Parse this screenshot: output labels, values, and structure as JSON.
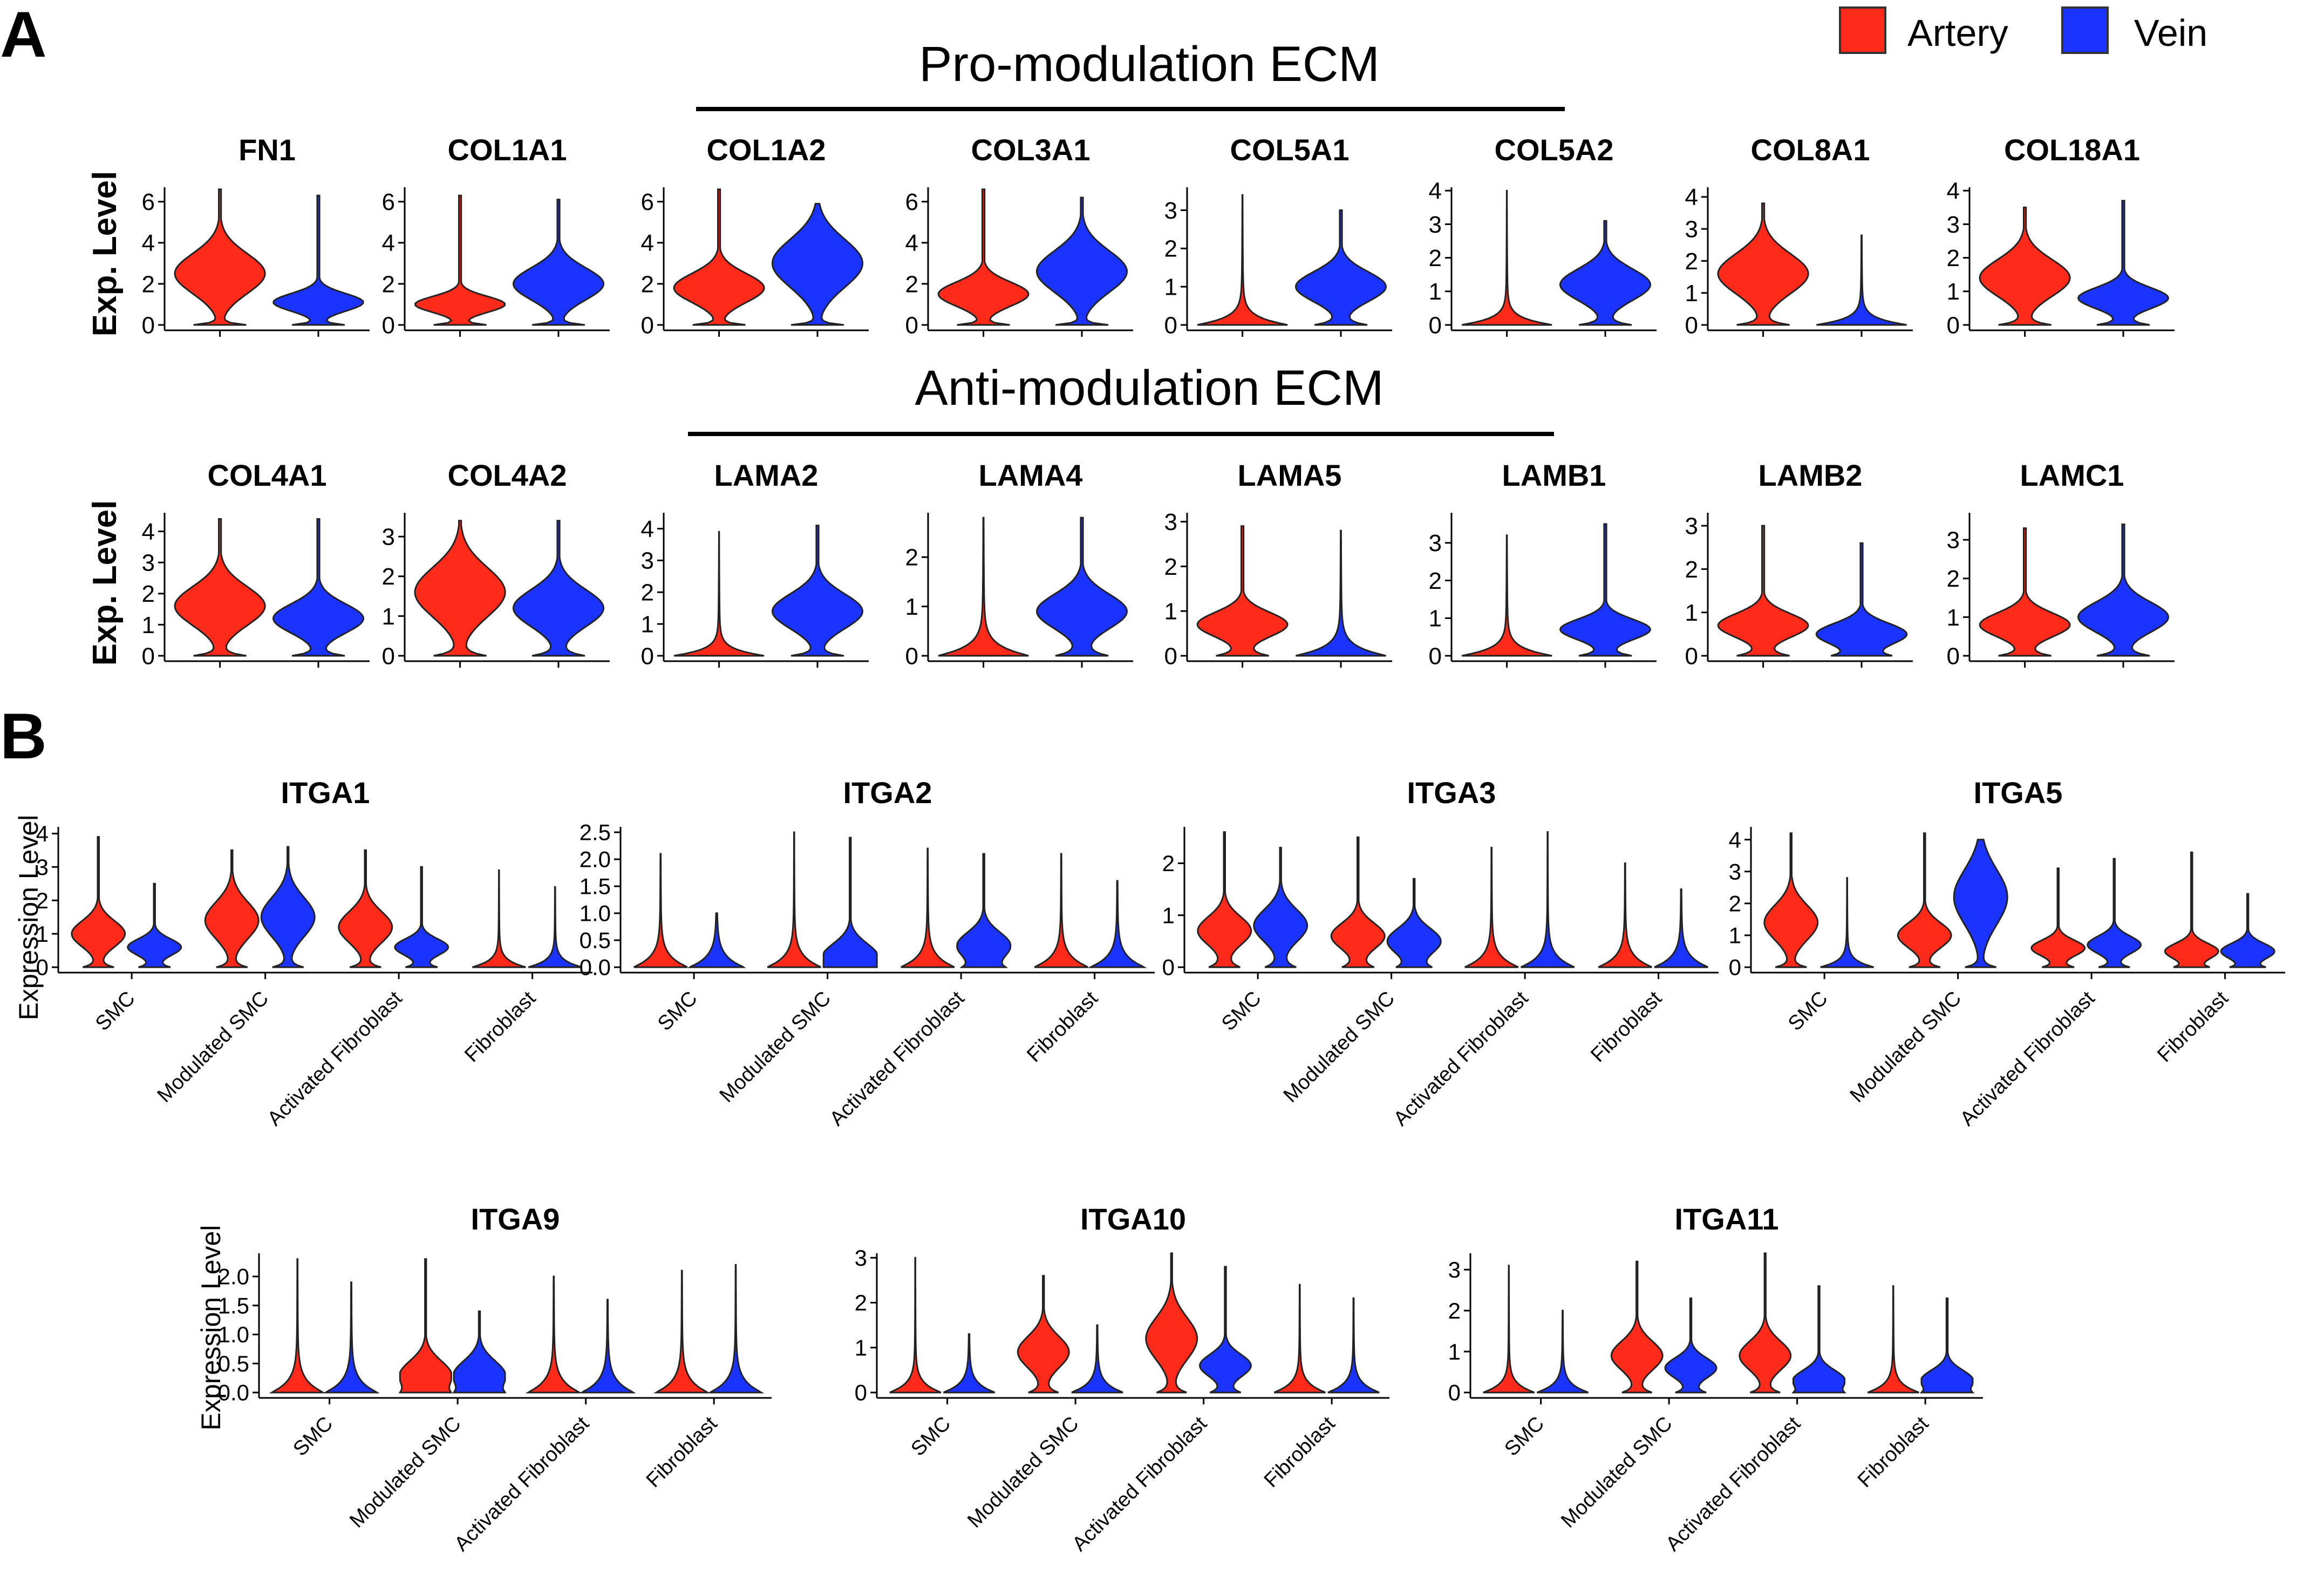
{
  "colors": {
    "artery": "#FF2A1A",
    "vein": "#1A33FF",
    "outline": "#222222",
    "axis": "#000000"
  },
  "legend": {
    "items": [
      {
        "label": "Artery",
        "color": "#FF2A1A"
      },
      {
        "label": "Vein",
        "color": "#1A33FF"
      }
    ]
  },
  "panels": {
    "A": {
      "letter": "A",
      "row1_header": "Pro-modulation ECM",
      "row2_header": "Anti-modulation ECM",
      "ylabel": "Exp. Level"
    },
    "B": {
      "letter": "B",
      "ylabel": "Expression Level"
    }
  },
  "chart_data": [
    {
      "type": "violin",
      "panel": "A",
      "row": 1,
      "groups": [
        "Artery",
        "Vein"
      ],
      "genes": [
        {
          "gene": "FN1",
          "ylim": [
            0,
            6.7
          ],
          "ticks": [
            "0",
            "2",
            "4",
            "6"
          ],
          "tick_values": [
            0,
            2,
            4,
            6
          ],
          "artery_max": 6.6,
          "vein_max": 6.3,
          "artery_mode": 2.5,
          "vein_mode": 1.1
        },
        {
          "gene": "COL1A1",
          "ylim": [
            0,
            6.7
          ],
          "ticks": [
            "0",
            "2",
            "4",
            "6"
          ],
          "tick_values": [
            0,
            2,
            4,
            6
          ],
          "artery_max": 6.3,
          "vein_max": 6.1,
          "artery_mode": 1.0,
          "vein_mode": 2.0
        },
        {
          "gene": "COL1A2",
          "ylim": [
            0,
            6.7
          ],
          "ticks": [
            "0",
            "2",
            "4",
            "6"
          ],
          "tick_values": [
            0,
            2,
            4,
            6
          ],
          "artery_max": 6.6,
          "vein_max": 5.9,
          "artery_mode": 1.8,
          "vein_mode": 3.0
        },
        {
          "gene": "COL3A1",
          "ylim": [
            0,
            6.7
          ],
          "ticks": [
            "0",
            "2",
            "4",
            "6"
          ],
          "tick_values": [
            0,
            2,
            4,
            6
          ],
          "artery_max": 6.6,
          "vein_max": 6.2,
          "artery_mode": 1.5,
          "vein_mode": 2.6
        },
        {
          "gene": "COL5A1",
          "ylim": [
            0,
            3.6
          ],
          "ticks": [
            "0",
            "1",
            "2",
            "3"
          ],
          "tick_values": [
            0,
            1,
            2,
            3
          ],
          "artery_max": 3.4,
          "vein_max": 3.0,
          "artery_mode": 0.0,
          "vein_mode": 1.0
        },
        {
          "gene": "COL5A2",
          "ylim": [
            0,
            4.1
          ],
          "ticks": [
            "0",
            "1",
            "2",
            "3",
            "4"
          ],
          "tick_values": [
            0,
            1,
            2,
            3,
            4
          ],
          "artery_max": 4.0,
          "vein_max": 3.1,
          "artery_mode": 0.0,
          "vein_mode": 1.2
        },
        {
          "gene": "COL8A1",
          "ylim": [
            0,
            4.3
          ],
          "ticks": [
            "0",
            "1",
            "2",
            "3",
            "4"
          ],
          "tick_values": [
            0,
            1,
            2,
            3,
            4
          ],
          "artery_max": 3.8,
          "vein_max": 2.8,
          "artery_mode": 1.6,
          "vein_mode": 0.0
        },
        {
          "gene": "COL18A1",
          "ylim": [
            0,
            4.1
          ],
          "ticks": [
            "0",
            "1",
            "2",
            "3",
            "4"
          ],
          "tick_values": [
            0,
            1,
            2,
            3,
            4
          ],
          "artery_max": 3.5,
          "vein_max": 3.7,
          "artery_mode": 1.4,
          "vein_mode": 0.8
        }
      ]
    },
    {
      "type": "violin",
      "panel": "A",
      "row": 2,
      "groups": [
        "Artery",
        "Vein"
      ],
      "genes": [
        {
          "gene": "COL4A1",
          "ylim": [
            0,
            4.6
          ],
          "ticks": [
            "0",
            "1",
            "2",
            "3",
            "4"
          ],
          "tick_values": [
            0,
            1,
            2,
            3,
            4
          ],
          "artery_max": 4.4,
          "vein_max": 4.4,
          "artery_mode": 1.6,
          "vein_mode": 1.2
        },
        {
          "gene": "COL4A2",
          "ylim": [
            0,
            3.6
          ],
          "ticks": [
            "0",
            "1",
            "2",
            "3"
          ],
          "tick_values": [
            0,
            1,
            2,
            3
          ],
          "artery_max": 3.4,
          "vein_max": 3.4,
          "artery_mode": 1.6,
          "vein_mode": 1.2
        },
        {
          "gene": "LAMA2",
          "ylim": [
            0,
            4.5
          ],
          "ticks": [
            "0",
            "1",
            "2",
            "3",
            "4"
          ],
          "tick_values": [
            0,
            1,
            2,
            3,
            4
          ],
          "artery_max": 3.9,
          "vein_max": 4.1,
          "artery_mode": 0.0,
          "vein_mode": 1.4
        },
        {
          "gene": "LAMA4",
          "ylim": [
            0,
            2.9
          ],
          "ticks": [
            "0",
            "1",
            "2"
          ],
          "tick_values": [
            0,
            1,
            2
          ],
          "artery_max": 2.8,
          "vein_max": 2.8,
          "artery_mode": 0.0,
          "vein_mode": 0.9
        },
        {
          "gene": "LAMA5",
          "ylim": [
            0,
            3.2
          ],
          "ticks": [
            "0",
            "1",
            "2",
            "3"
          ],
          "tick_values": [
            0,
            1,
            2,
            3
          ],
          "artery_max": 2.9,
          "vein_max": 2.8,
          "artery_mode": 0.7,
          "vein_mode": 0.0
        },
        {
          "gene": "LAMB1",
          "ylim": [
            0,
            3.8
          ],
          "ticks": [
            "0",
            "1",
            "2",
            "3"
          ],
          "tick_values": [
            0,
            1,
            2,
            3
          ],
          "artery_max": 3.2,
          "vein_max": 3.5,
          "artery_mode": 0.0,
          "vein_mode": 0.7
        },
        {
          "gene": "LAMB2",
          "ylim": [
            0,
            3.3
          ],
          "ticks": [
            "0",
            "1",
            "2",
            "3"
          ],
          "tick_values": [
            0,
            1,
            2,
            3
          ],
          "artery_max": 3.0,
          "vein_max": 2.6,
          "artery_mode": 0.7,
          "vein_mode": 0.5
        },
        {
          "gene": "LAMC1",
          "ylim": [
            0,
            3.7
          ],
          "ticks": [
            "0",
            "1",
            "2",
            "3"
          ],
          "tick_values": [
            0,
            1,
            2,
            3
          ],
          "artery_max": 3.3,
          "vein_max": 3.4,
          "artery_mode": 0.8,
          "vein_mode": 1.0
        }
      ]
    },
    {
      "type": "violin",
      "panel": "B",
      "row": 1,
      "categories": [
        "SMC",
        "Modulated SMC",
        "Activated Fibroblast",
        "Fibroblast"
      ],
      "genes": [
        {
          "gene": "ITGA1",
          "ylim": [
            0,
            4.2
          ],
          "ticks": [
            "0",
            "1",
            "2",
            "3",
            "4"
          ],
          "tick_values": [
            0,
            1,
            2,
            3,
            4
          ],
          "artery_max": [
            3.9,
            3.5,
            3.5,
            2.9
          ],
          "vein_max": [
            2.5,
            3.6,
            3.0,
            2.4
          ],
          "artery_mode": [
            1.0,
            1.4,
            1.2,
            0.0
          ],
          "vein_mode": [
            0.6,
            1.5,
            0.6,
            0.0
          ]
        },
        {
          "gene": "ITGA2",
          "ylim": [
            0,
            2.6
          ],
          "ticks": [
            "0.0",
            "0.5",
            "1.0",
            "1.5",
            "2.0",
            "2.5"
          ],
          "tick_values": [
            0,
            0.5,
            1,
            1.5,
            2,
            2.5
          ],
          "artery_max": [
            2.1,
            2.5,
            2.2,
            2.1
          ],
          "vein_max": [
            1.0,
            2.4,
            2.1,
            1.6
          ],
          "artery_mode": [
            0,
            0,
            0,
            0
          ],
          "vein_mode": [
            0,
            0.2,
            0.4,
            0
          ]
        },
        {
          "gene": "ITGA3",
          "ylim": [
            0,
            2.7
          ],
          "ticks": [
            "0",
            "1",
            "2"
          ],
          "tick_values": [
            0,
            1,
            2
          ],
          "artery_max": [
            2.6,
            2.5,
            2.3,
            2.0
          ],
          "vein_max": [
            2.3,
            1.7,
            2.6,
            1.5
          ],
          "artery_mode": [
            0.7,
            0.6,
            0,
            0
          ],
          "vein_mode": [
            0.8,
            0.5,
            0,
            0
          ]
        },
        {
          "gene": "ITGA5",
          "ylim": [
            0,
            4.4
          ],
          "ticks": [
            "0",
            "1",
            "2",
            "3",
            "4"
          ],
          "tick_values": [
            0,
            1,
            2,
            3,
            4
          ],
          "artery_max": [
            4.2,
            4.2,
            3.1,
            3.6
          ],
          "vein_max": [
            2.8,
            4.0,
            3.4,
            2.3
          ],
          "artery_mode": [
            1.4,
            1.0,
            0.6,
            0.5
          ],
          "vein_mode": [
            0,
            2.2,
            0.7,
            0.5
          ]
        }
      ]
    },
    {
      "type": "violin",
      "panel": "B",
      "row": 2,
      "categories": [
        "SMC",
        "Modulated SMC",
        "Activated Fibroblast",
        "Fibroblast"
      ],
      "genes": [
        {
          "gene": "ITGA9",
          "ylim": [
            0,
            2.4
          ],
          "ticks": [
            "0.0",
            "0.5",
            "1.0",
            "1.5",
            "2.0"
          ],
          "tick_values": [
            0,
            0.5,
            1,
            1.5,
            2
          ],
          "artery_max": [
            2.3,
            2.3,
            2.0,
            2.1
          ],
          "vein_max": [
            1.9,
            1.4,
            1.6,
            2.2
          ],
          "artery_mode": [
            0,
            0.3,
            0,
            0
          ],
          "vein_mode": [
            0,
            0.3,
            0,
            0
          ]
        },
        {
          "gene": "ITGA10",
          "ylim": [
            0,
            3.1
          ],
          "ticks": [
            "0",
            "1",
            "2",
            "3"
          ],
          "tick_values": [
            0,
            1,
            2,
            3
          ],
          "artery_max": [
            3.0,
            2.6,
            3.1,
            2.4
          ],
          "vein_max": [
            1.3,
            1.5,
            2.8,
            2.1
          ],
          "artery_mode": [
            0,
            0.9,
            1.2,
            0
          ],
          "vein_mode": [
            0,
            0.1,
            0.6,
            0
          ]
        },
        {
          "gene": "ITGA11",
          "ylim": [
            0,
            3.4
          ],
          "ticks": [
            "0",
            "1",
            "2",
            "3"
          ],
          "tick_values": [
            0,
            1,
            2,
            3
          ],
          "artery_max": [
            3.1,
            3.2,
            3.4,
            2.6
          ],
          "vein_max": [
            2.0,
            2.3,
            2.6,
            2.3
          ],
          "artery_mode": [
            0,
            0.9,
            0.9,
            0
          ],
          "vein_mode": [
            0,
            0.6,
            0.3,
            0.3
          ]
        }
      ]
    }
  ]
}
